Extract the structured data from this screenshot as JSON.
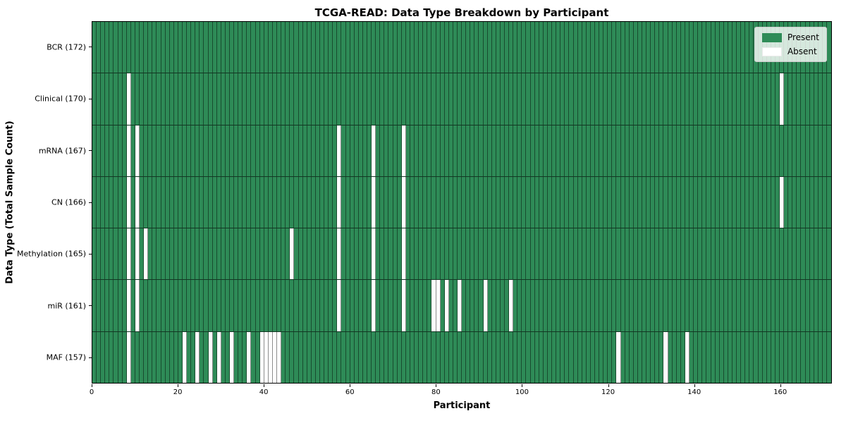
{
  "title": "TCGA-READ: Data Type Breakdown by Participant",
  "colors": {
    "present": "#2e8b57",
    "absent": "#ffffff",
    "gridline": "rgba(0,0,0,0.45)",
    "spine": "#000000",
    "legend_bg": "rgba(255,255,255,0.8)"
  },
  "legend": {
    "position": "upper right",
    "items": [
      {
        "name": "present",
        "label": "Present",
        "color": "#2e8b57"
      },
      {
        "name": "absent",
        "label": "Absent",
        "color": "#ffffff"
      }
    ]
  },
  "chart_data": {
    "type": "heatmap",
    "title": "TCGA-READ: Data Type Breakdown by Participant",
    "xlabel": "Participant",
    "ylabel": "Data Type (Total Sample Count)",
    "x_range": [
      0,
      172
    ],
    "n_participants": 172,
    "x_ticks": [
      0,
      20,
      40,
      60,
      80,
      100,
      120,
      140,
      160
    ],
    "grid": "per-cell black edges",
    "rows": [
      {
        "label": "BCR (172)",
        "data_type": "BCR",
        "total_sample_count": 172,
        "absent_participants": []
      },
      {
        "label": "Clinical (170)",
        "data_type": "Clinical",
        "total_sample_count": 170,
        "absent_participants": [
          8,
          160
        ]
      },
      {
        "label": "mRNA (167)",
        "data_type": "mRNA",
        "total_sample_count": 167,
        "absent_participants": [
          8,
          10,
          57,
          65,
          72
        ]
      },
      {
        "label": "CN (166)",
        "data_type": "CN",
        "total_sample_count": 166,
        "absent_participants": [
          8,
          10,
          57,
          65,
          72,
          160
        ]
      },
      {
        "label": "Methylation (165)",
        "data_type": "Methylation",
        "total_sample_count": 165,
        "absent_participants": [
          8,
          10,
          12,
          46,
          57,
          65,
          72
        ]
      },
      {
        "label": "miR (161)",
        "data_type": "miR",
        "total_sample_count": 161,
        "absent_participants": [
          8,
          10,
          57,
          65,
          72,
          79,
          80,
          82,
          85,
          91,
          97
        ]
      },
      {
        "label": "MAF (157)",
        "data_type": "MAF",
        "total_sample_count": 157,
        "absent_participants": [
          8,
          21,
          24,
          27,
          29,
          32,
          36,
          39,
          40,
          41,
          42,
          43,
          122,
          133,
          138
        ]
      }
    ]
  }
}
